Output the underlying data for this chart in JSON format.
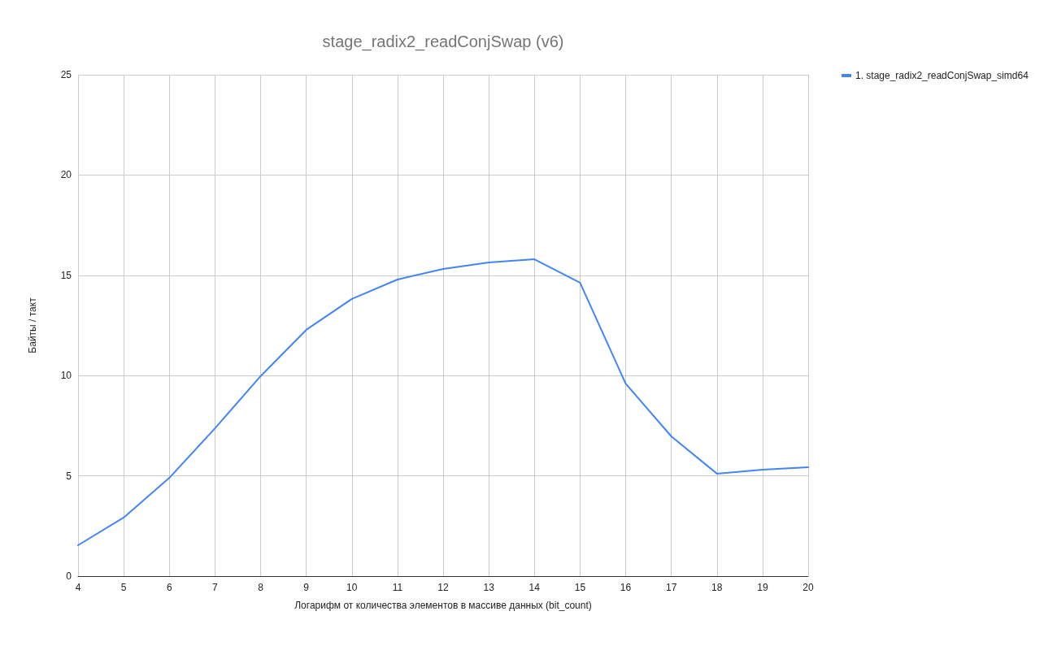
{
  "chart_data": {
    "type": "line",
    "title": "stage_radix2_readConjSwap (v6)",
    "xlabel": "Логарифм от количества элементов в массиве данных (bit_count)",
    "ylabel": "Байты / такт",
    "x": [
      4,
      5,
      6,
      7,
      8,
      9,
      10,
      11,
      12,
      13,
      14,
      15,
      16,
      17,
      18,
      19,
      20
    ],
    "series": [
      {
        "name": "1. stage_radix2_readConjSwap_simd64",
        "color": "#4285f4",
        "values": [
          1.54,
          2.92,
          4.9,
          7.37,
          9.97,
          12.28,
          13.82,
          14.79,
          15.32,
          15.64,
          15.8,
          14.63,
          9.6,
          6.97,
          5.11,
          5.31,
          5.43
        ]
      }
    ],
    "xlim": [
      4,
      20
    ],
    "xticks": [
      4,
      5,
      6,
      7,
      8,
      9,
      10,
      11,
      12,
      13,
      14,
      15,
      16,
      17,
      18,
      19,
      20
    ],
    "ylim": [
      0,
      25
    ],
    "yticks": [
      0,
      5,
      10,
      15,
      20,
      25
    ],
    "grid": true,
    "legend": "top right",
    "marker": "none",
    "line_style": "solid"
  }
}
